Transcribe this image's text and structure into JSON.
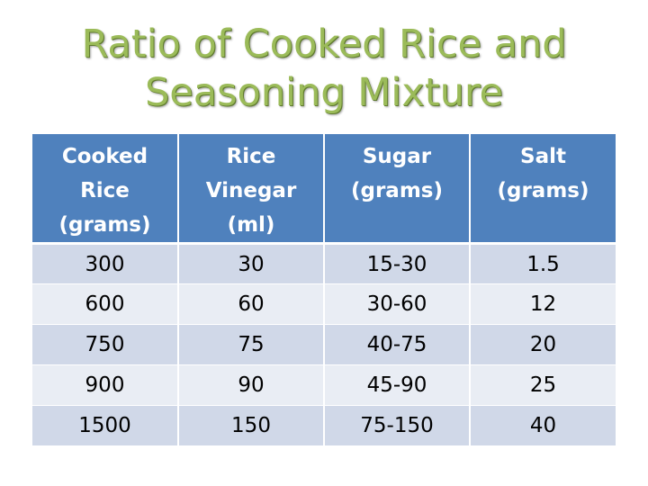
{
  "title": {
    "line1": "Ratio of Cooked Rice and",
    "line2": "Seasoning Mixture"
  },
  "table": {
    "headers": [
      [
        "Cooked",
        "Rice",
        "(grams)"
      ],
      [
        "Rice",
        "Vinegar",
        "(ml)"
      ],
      [
        "Sugar",
        "(grams)"
      ],
      [
        "Salt",
        "(grams)"
      ]
    ],
    "rows": [
      [
        "300",
        "30",
        "15-30",
        "1.5"
      ],
      [
        "600",
        "60",
        "30-60",
        "12"
      ],
      [
        "750",
        "75",
        "40-75",
        "20"
      ],
      [
        "900",
        "90",
        "45-90",
        "25"
      ],
      [
        "1500",
        "150",
        "75-150",
        "40"
      ]
    ]
  },
  "colors": {
    "title": "#9bbb59",
    "header_bg": "#4f81bd",
    "row_odd": "#d0d8e8",
    "row_even": "#e9edf4"
  }
}
